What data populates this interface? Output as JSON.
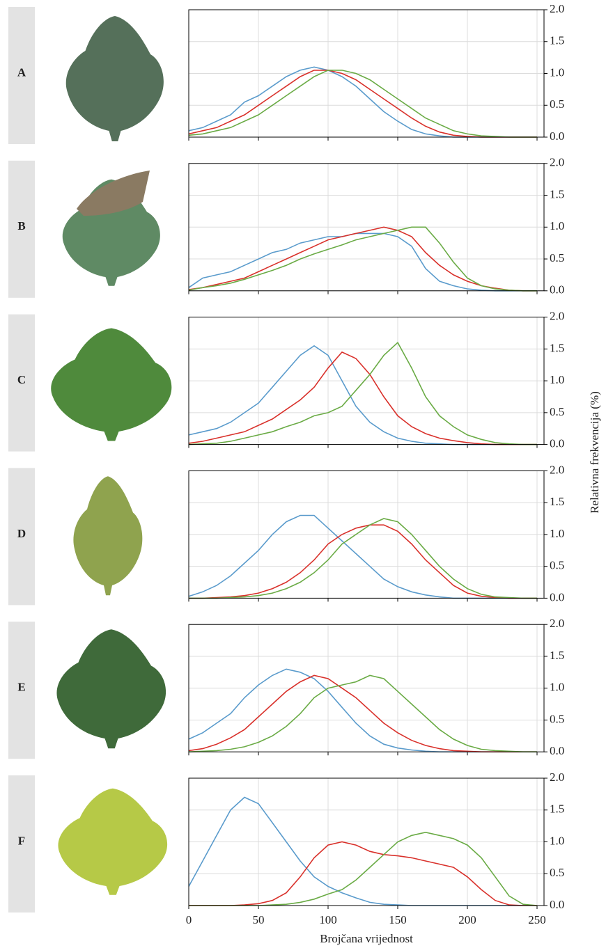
{
  "chart_data": [
    {
      "type": "line",
      "label": "A",
      "x": [
        0,
        10,
        20,
        30,
        40,
        50,
        60,
        70,
        80,
        90,
        100,
        110,
        120,
        130,
        140,
        150,
        160,
        170,
        180,
        190,
        200,
        210,
        220,
        230,
        240,
        250
      ],
      "series": [
        {
          "color": "#d9312b",
          "values": [
            0.05,
            0.1,
            0.15,
            0.25,
            0.35,
            0.5,
            0.65,
            0.8,
            0.95,
            1.05,
            1.05,
            1.0,
            0.9,
            0.75,
            0.6,
            0.45,
            0.3,
            0.17,
            0.08,
            0.03,
            0.01,
            0,
            0,
            0,
            0,
            0
          ]
        },
        {
          "color": "#6aab45",
          "values": [
            0.03,
            0.05,
            0.1,
            0.15,
            0.25,
            0.35,
            0.5,
            0.65,
            0.8,
            0.95,
            1.05,
            1.05,
            1.0,
            0.9,
            0.75,
            0.6,
            0.45,
            0.3,
            0.2,
            0.1,
            0.05,
            0.02,
            0.01,
            0,
            0,
            0
          ]
        },
        {
          "color": "#5a9bcc",
          "values": [
            0.1,
            0.15,
            0.25,
            0.35,
            0.55,
            0.65,
            0.8,
            0.95,
            1.05,
            1.1,
            1.05,
            0.95,
            0.8,
            0.6,
            0.4,
            0.25,
            0.12,
            0.05,
            0.02,
            0,
            0,
            0,
            0,
            0,
            0,
            0
          ]
        }
      ],
      "xlim": [
        0,
        255
      ],
      "xticks": [
        0,
        50,
        100,
        150,
        200,
        250
      ],
      "ylim": [
        0,
        2
      ],
      "yticks": [
        {
          "value": 0,
          "label": "0.0"
        },
        0.5,
        {
          "value": 1,
          "label": "1.0"
        },
        1.5,
        {
          "value": 2,
          "label": "2.0"
        }
      ],
      "grid": true
    },
    {
      "type": "line",
      "label": "B",
      "x": [
        0,
        10,
        20,
        30,
        40,
        50,
        60,
        70,
        80,
        90,
        100,
        110,
        120,
        130,
        140,
        150,
        160,
        170,
        180,
        190,
        200,
        210,
        220,
        230,
        240,
        250
      ],
      "series": [
        {
          "color": "#d9312b",
          "values": [
            0.02,
            0.05,
            0.1,
            0.15,
            0.2,
            0.3,
            0.4,
            0.5,
            0.6,
            0.7,
            0.8,
            0.85,
            0.9,
            0.95,
            1.0,
            0.95,
            0.85,
            0.6,
            0.4,
            0.25,
            0.15,
            0.08,
            0.04,
            0.01,
            0,
            0
          ]
        },
        {
          "color": "#6aab45",
          "values": [
            0.01,
            0.05,
            0.08,
            0.12,
            0.18,
            0.25,
            0.32,
            0.4,
            0.5,
            0.58,
            0.65,
            0.72,
            0.8,
            0.85,
            0.9,
            0.95,
            1.0,
            1.0,
            0.75,
            0.45,
            0.2,
            0.08,
            0.03,
            0.01,
            0,
            0
          ]
        },
        {
          "color": "#5a9bcc",
          "values": [
            0.05,
            0.2,
            0.25,
            0.3,
            0.4,
            0.5,
            0.6,
            0.65,
            0.75,
            0.8,
            0.85,
            0.85,
            0.9,
            0.9,
            0.9,
            0.85,
            0.7,
            0.35,
            0.15,
            0.08,
            0.03,
            0.01,
            0,
            0,
            0,
            0
          ]
        }
      ],
      "xlim": [
        0,
        255
      ],
      "xticks": [
        0,
        50,
        100,
        150,
        200,
        250
      ],
      "ylim": [
        0,
        2
      ],
      "yticks": [
        {
          "value": 0,
          "label": "0.0"
        },
        0.5,
        {
          "value": 1,
          "label": "1.0"
        },
        1.5,
        {
          "value": 2,
          "label": "2.0"
        }
      ],
      "grid": true
    },
    {
      "type": "line",
      "label": "C",
      "x": [
        0,
        10,
        20,
        30,
        40,
        50,
        60,
        70,
        80,
        90,
        100,
        110,
        120,
        130,
        140,
        150,
        160,
        170,
        180,
        190,
        200,
        210,
        220,
        230,
        240,
        250
      ],
      "series": [
        {
          "color": "#d9312b",
          "values": [
            0.02,
            0.05,
            0.1,
            0.15,
            0.2,
            0.3,
            0.4,
            0.55,
            0.7,
            0.9,
            1.2,
            1.45,
            1.35,
            1.1,
            0.75,
            0.45,
            0.28,
            0.17,
            0.1,
            0.06,
            0.03,
            0.01,
            0,
            0,
            0,
            0
          ]
        },
        {
          "color": "#6aab45",
          "values": [
            0,
            0.01,
            0.02,
            0.05,
            0.1,
            0.15,
            0.2,
            0.28,
            0.35,
            0.45,
            0.5,
            0.6,
            0.85,
            1.1,
            1.4,
            1.6,
            1.2,
            0.75,
            0.45,
            0.28,
            0.15,
            0.08,
            0.03,
            0.01,
            0,
            0
          ]
        },
        {
          "color": "#5a9bcc",
          "values": [
            0.15,
            0.2,
            0.25,
            0.35,
            0.5,
            0.65,
            0.9,
            1.15,
            1.4,
            1.55,
            1.4,
            1.0,
            0.6,
            0.35,
            0.2,
            0.1,
            0.05,
            0.02,
            0.01,
            0,
            0,
            0,
            0,
            0,
            0,
            0
          ]
        }
      ],
      "xlim": [
        0,
        255
      ],
      "xticks": [
        0,
        50,
        100,
        150,
        200,
        250
      ],
      "ylim": [
        0,
        2
      ],
      "yticks": [
        {
          "value": 0,
          "label": "0.0"
        },
        0.5,
        {
          "value": 1,
          "label": "1.0"
        },
        1.5,
        {
          "value": 2,
          "label": "2.0"
        }
      ],
      "grid": true
    },
    {
      "type": "line",
      "label": "D",
      "x": [
        0,
        10,
        20,
        30,
        40,
        50,
        60,
        70,
        80,
        90,
        100,
        110,
        120,
        130,
        140,
        150,
        160,
        170,
        180,
        190,
        200,
        210,
        220,
        230,
        240,
        250
      ],
      "series": [
        {
          "color": "#d9312b",
          "values": [
            0,
            0,
            0.01,
            0.02,
            0.04,
            0.08,
            0.15,
            0.25,
            0.4,
            0.6,
            0.85,
            1.0,
            1.1,
            1.15,
            1.15,
            1.05,
            0.85,
            0.6,
            0.4,
            0.2,
            0.08,
            0.03,
            0.01,
            0,
            0,
            0
          ]
        },
        {
          "color": "#6aab45",
          "values": [
            0,
            0,
            0,
            0.01,
            0.02,
            0.04,
            0.08,
            0.15,
            0.25,
            0.4,
            0.6,
            0.85,
            1.0,
            1.15,
            1.25,
            1.2,
            1.0,
            0.75,
            0.5,
            0.3,
            0.15,
            0.06,
            0.02,
            0.01,
            0,
            0
          ]
        },
        {
          "color": "#5a9bcc",
          "values": [
            0.03,
            0.1,
            0.2,
            0.35,
            0.55,
            0.75,
            1.0,
            1.2,
            1.3,
            1.3,
            1.1,
            0.9,
            0.7,
            0.5,
            0.3,
            0.18,
            0.1,
            0.05,
            0.02,
            0,
            0,
            0,
            0,
            0,
            0,
            0
          ]
        }
      ],
      "xlim": [
        0,
        255
      ],
      "xticks": [
        0,
        50,
        100,
        150,
        200,
        250
      ],
      "ylim": [
        0,
        2
      ],
      "yticks": [
        {
          "value": 0,
          "label": "0.0"
        },
        0.5,
        {
          "value": 1,
          "label": "1.0"
        },
        1.5,
        {
          "value": 2,
          "label": "2.0"
        }
      ],
      "grid": true
    },
    {
      "type": "line",
      "label": "E",
      "x": [
        0,
        10,
        20,
        30,
        40,
        50,
        60,
        70,
        80,
        90,
        100,
        110,
        120,
        130,
        140,
        150,
        160,
        170,
        180,
        190,
        200,
        210,
        220,
        230,
        240,
        250
      ],
      "series": [
        {
          "color": "#d9312b",
          "values": [
            0.02,
            0.05,
            0.12,
            0.22,
            0.35,
            0.55,
            0.75,
            0.95,
            1.1,
            1.2,
            1.15,
            1.0,
            0.85,
            0.65,
            0.45,
            0.3,
            0.18,
            0.1,
            0.05,
            0.02,
            0.01,
            0,
            0,
            0,
            0,
            0
          ]
        },
        {
          "color": "#6aab45",
          "values": [
            0,
            0.01,
            0.02,
            0.04,
            0.08,
            0.15,
            0.25,
            0.4,
            0.6,
            0.85,
            1.0,
            1.05,
            1.1,
            1.2,
            1.15,
            0.95,
            0.75,
            0.55,
            0.35,
            0.2,
            0.1,
            0.04,
            0.02,
            0.01,
            0,
            0
          ]
        },
        {
          "color": "#5a9bcc",
          "values": [
            0.2,
            0.3,
            0.45,
            0.6,
            0.85,
            1.05,
            1.2,
            1.3,
            1.25,
            1.15,
            0.95,
            0.7,
            0.45,
            0.25,
            0.12,
            0.06,
            0.03,
            0.01,
            0,
            0,
            0,
            0,
            0,
            0,
            0,
            0
          ]
        }
      ],
      "xlim": [
        0,
        255
      ],
      "xticks": [
        0,
        50,
        100,
        150,
        200,
        250
      ],
      "ylim": [
        0,
        2
      ],
      "yticks": [
        {
          "value": 0,
          "label": "0.0"
        },
        0.5,
        {
          "value": 1,
          "label": "1.0"
        },
        1.5,
        {
          "value": 2,
          "label": "2.0"
        }
      ],
      "grid": true
    },
    {
      "type": "line",
      "label": "F",
      "x": [
        0,
        10,
        20,
        30,
        40,
        50,
        60,
        70,
        80,
        90,
        100,
        110,
        120,
        130,
        140,
        150,
        160,
        170,
        180,
        190,
        200,
        210,
        220,
        230,
        240,
        250
      ],
      "series": [
        {
          "color": "#d9312b",
          "values": [
            0,
            0,
            0,
            0,
            0.01,
            0.03,
            0.08,
            0.2,
            0.45,
            0.75,
            0.95,
            1.0,
            0.95,
            0.85,
            0.8,
            0.78,
            0.75,
            0.7,
            0.65,
            0.6,
            0.45,
            0.25,
            0.08,
            0.01,
            0,
            0
          ]
        },
        {
          "color": "#6aab45",
          "values": [
            0,
            0,
            0,
            0,
            0,
            0,
            0.01,
            0.02,
            0.05,
            0.1,
            0.18,
            0.25,
            0.4,
            0.6,
            0.8,
            1.0,
            1.1,
            1.15,
            1.1,
            1.05,
            0.95,
            0.75,
            0.45,
            0.15,
            0.02,
            0
          ]
        },
        {
          "color": "#5a9bcc",
          "values": [
            0.3,
            0.7,
            1.1,
            1.5,
            1.7,
            1.6,
            1.3,
            1.0,
            0.7,
            0.45,
            0.3,
            0.2,
            0.12,
            0.05,
            0.02,
            0.01,
            0,
            0,
            0,
            0,
            0,
            0,
            0,
            0,
            0,
            0
          ]
        }
      ],
      "xlim": [
        0,
        255
      ],
      "xticks": [
        0,
        50,
        100,
        150,
        200,
        250
      ],
      "ylim": [
        0,
        2
      ],
      "yticks": [
        {
          "value": 0,
          "label": "0.0"
        },
        0.5,
        {
          "value": 1,
          "label": "1.0"
        },
        1.5,
        {
          "value": 2,
          "label": "2.0"
        }
      ],
      "grid": true
    }
  ],
  "xlabel": "Brojčana vrijednost",
  "ylabel": "Relativna frekvencija (%)"
}
